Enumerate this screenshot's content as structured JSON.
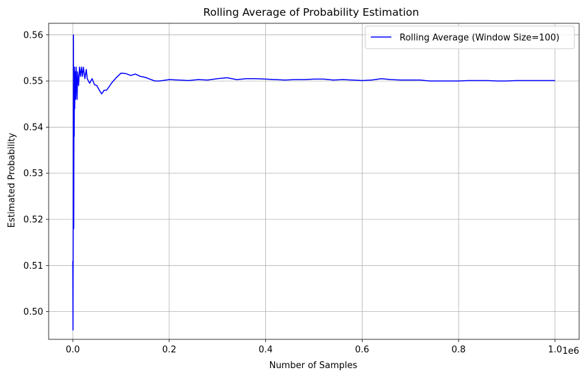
{
  "chart_data": {
    "type": "line",
    "title": "Rolling Average of Probability Estimation",
    "xlabel": "Number of Samples",
    "ylabel": "Estimated Probability",
    "x_offset_label": "1e6",
    "xlim": [
      -0.05,
      1.05
    ],
    "ylim": [
      0.494,
      0.5625
    ],
    "x_ticks": [
      0.0,
      0.2,
      0.4,
      0.6,
      0.8,
      1.0
    ],
    "x_tick_labels": [
      "0.0",
      "0.2",
      "0.4",
      "0.6",
      "0.8",
      "1.0"
    ],
    "y_ticks": [
      0.5,
      0.51,
      0.52,
      0.53,
      0.54,
      0.55,
      0.56
    ],
    "y_tick_labels": [
      "0.50",
      "0.51",
      "0.52",
      "0.53",
      "0.54",
      "0.55",
      "0.56"
    ],
    "grid": true,
    "legend_position": "top-right",
    "series": [
      {
        "name": "Rolling Average (Window Size=100)",
        "color": "#0000ff",
        "x": [
          0.0,
          0.0005,
          0.001,
          0.0015,
          0.002,
          0.0025,
          0.003,
          0.0035,
          0.004,
          0.0045,
          0.005,
          0.006,
          0.007,
          0.008,
          0.009,
          0.01,
          0.012,
          0.014,
          0.016,
          0.018,
          0.02,
          0.022,
          0.025,
          0.028,
          0.03,
          0.035,
          0.04,
          0.045,
          0.05,
          0.055,
          0.06,
          0.065,
          0.07,
          0.075,
          0.08,
          0.09,
          0.1,
          0.11,
          0.12,
          0.13,
          0.14,
          0.15,
          0.16,
          0.17,
          0.18,
          0.2,
          0.22,
          0.24,
          0.26,
          0.28,
          0.3,
          0.32,
          0.34,
          0.36,
          0.38,
          0.4,
          0.42,
          0.44,
          0.46,
          0.48,
          0.5,
          0.52,
          0.54,
          0.56,
          0.58,
          0.6,
          0.62,
          0.64,
          0.66,
          0.68,
          0.7,
          0.72,
          0.74,
          0.76,
          0.78,
          0.8,
          0.82,
          0.84,
          0.86,
          0.88,
          0.9,
          0.92,
          0.94,
          0.96,
          0.98,
          1.0
        ],
        "y": [
          0.511,
          0.496,
          0.525,
          0.56,
          0.518,
          0.545,
          0.538,
          0.553,
          0.544,
          0.549,
          0.552,
          0.546,
          0.553,
          0.549,
          0.546,
          0.552,
          0.549,
          0.553,
          0.551,
          0.553,
          0.551,
          0.553,
          0.5505,
          0.5525,
          0.5505,
          0.5495,
          0.5505,
          0.5492,
          0.549,
          0.548,
          0.5472,
          0.548,
          0.548,
          0.5487,
          0.5495,
          0.5507,
          0.5517,
          0.5516,
          0.5512,
          0.5515,
          0.551,
          0.5508,
          0.5504,
          0.55,
          0.55,
          0.5503,
          0.5502,
          0.5501,
          0.5503,
          0.5502,
          0.5505,
          0.5507,
          0.5503,
          0.5505,
          0.5505,
          0.5504,
          0.5503,
          0.5502,
          0.5503,
          0.5503,
          0.5504,
          0.5504,
          0.5502,
          0.5503,
          0.5502,
          0.5501,
          0.5502,
          0.5505,
          0.5503,
          0.5502,
          0.5502,
          0.5502,
          0.55,
          0.55,
          0.55,
          0.55,
          0.5501,
          0.5501,
          0.5501,
          0.55,
          0.55,
          0.5501,
          0.5501,
          0.5501,
          0.5501,
          0.5501
        ]
      }
    ]
  }
}
